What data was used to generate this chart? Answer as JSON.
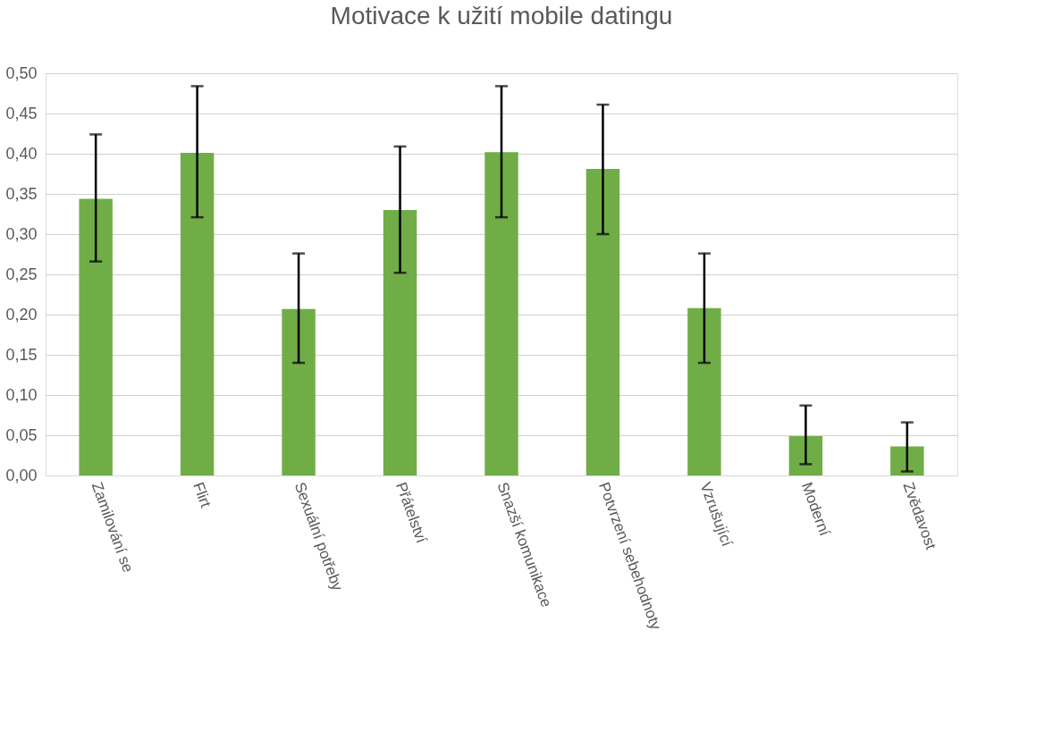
{
  "chart_data": {
    "type": "bar",
    "title": "Motivace k užití mobile datingu",
    "categories": [
      "Zamilování se",
      "Flirt",
      "Sexuální potřeby",
      "Přátelství",
      "Snazší komunikace",
      "Potvrzení sebehodnoty",
      "Vzrušující",
      "Moderní",
      "Zvědavost"
    ],
    "values": [
      0.344,
      0.401,
      0.207,
      0.33,
      0.402,
      0.381,
      0.208,
      0.049,
      0.036
    ],
    "errors": [
      [
        0.266,
        0.424
      ],
      [
        0.321,
        0.484
      ],
      [
        0.14,
        0.276
      ],
      [
        0.252,
        0.409
      ],
      [
        0.321,
        0.484
      ],
      [
        0.3,
        0.461
      ],
      [
        0.14,
        0.276
      ],
      [
        0.014,
        0.087
      ],
      [
        0.005,
        0.066
      ]
    ],
    "color": "#70ad47",
    "ylim": [
      0,
      0.5
    ],
    "yticks": [
      {
        "value": 0,
        "label": "0,00"
      },
      {
        "value": 0.05,
        "label": "0,05"
      },
      {
        "value": 0.1,
        "label": "0,10"
      },
      {
        "value": 0.15,
        "label": "0,15"
      },
      {
        "value": 0.2,
        "label": "0,20"
      },
      {
        "value": 0.25,
        "label": "0,25"
      },
      {
        "value": 0.3,
        "label": "0,30"
      },
      {
        "value": 0.35,
        "label": "0,35"
      },
      {
        "value": 0.4,
        "label": "0,40"
      },
      {
        "value": 0.45,
        "label": "0,45"
      },
      {
        "value": 0.5,
        "label": "0,50"
      }
    ],
    "grid": "y"
  }
}
